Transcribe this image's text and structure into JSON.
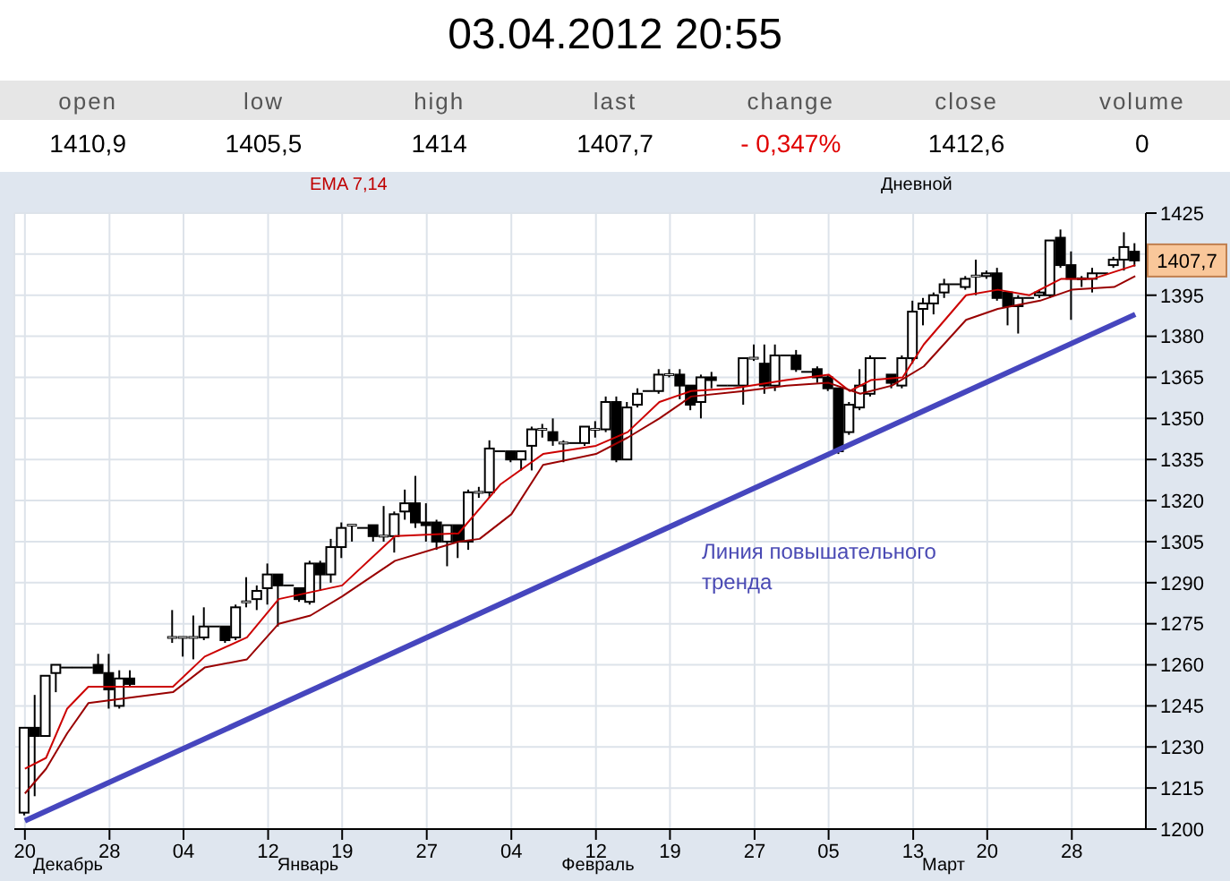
{
  "chart_data": [
    {
      "type": "other",
      "title": "03.04.2012 20:55",
      "categories": [
        "open",
        "low",
        "high",
        "last",
        "change",
        "close",
        "volume"
      ],
      "values": [
        1410.9,
        1405.5,
        1414,
        1407.7,
        -0.347,
        1412.6,
        0
      ],
      "value_labels": [
        "1410,9",
        "1405,5",
        "1414",
        "1407,7",
        "- 0,347%",
        "1412,6",
        "0"
      ]
    },
    {
      "type": "candlestick",
      "subtitle": "Дневной",
      "color": "#000000",
      "grid": true,
      "x": [
        "2011-12-20",
        "2011-12-21",
        "2011-12-22",
        "2011-12-23",
        "2011-12-24",
        "2011-12-25",
        "2011-12-26",
        "2011-12-27",
        "2011-12-28",
        "2011-12-29",
        "2011-12-30",
        "2012-01-03",
        "2012-01-04",
        "2012-01-05",
        "2012-01-06",
        "2012-01-07",
        "2012-01-08",
        "2012-01-09",
        "2012-01-10",
        "2012-01-11",
        "2012-01-12",
        "2012-01-13",
        "2012-01-14",
        "2012-01-15",
        "2012-01-16",
        "2012-01-17",
        "2012-01-18",
        "2012-01-19",
        "2012-01-20",
        "2012-01-21",
        "2012-01-22",
        "2012-01-23",
        "2012-01-24",
        "2012-01-25",
        "2012-01-26",
        "2012-01-27",
        "2012-01-28",
        "2012-01-29",
        "2012-01-30",
        "2012-01-31",
        "2012-02-01",
        "2012-02-02",
        "2012-02-03",
        "2012-02-04",
        "2012-02-05",
        "2012-02-06",
        "2012-02-07",
        "2012-02-08",
        "2012-02-09",
        "2012-02-10",
        "2012-02-11",
        "2012-02-12",
        "2012-02-13",
        "2012-02-14",
        "2012-02-15",
        "2012-02-16",
        "2012-02-17",
        "2012-02-18",
        "2012-02-19",
        "2012-02-20",
        "2012-02-21",
        "2012-02-22",
        "2012-02-23",
        "2012-02-24",
        "2012-02-25",
        "2012-02-26",
        "2012-02-27",
        "2012-02-28",
        "2012-02-29",
        "2012-03-01",
        "2012-03-02",
        "2012-03-03",
        "2012-03-04",
        "2012-03-05",
        "2012-03-06",
        "2012-03-07",
        "2012-03-08",
        "2012-03-09",
        "2012-03-10",
        "2012-03-11",
        "2012-03-12",
        "2012-03-13",
        "2012-03-14",
        "2012-03-15",
        "2012-03-16",
        "2012-03-17",
        "2012-03-18",
        "2012-03-19",
        "2012-03-20",
        "2012-03-21",
        "2012-03-22",
        "2012-03-23",
        "2012-03-24",
        "2012-03-25",
        "2012-03-26",
        "2012-03-27",
        "2012-03-28",
        "2012-03-29",
        "2012-03-30",
        "2012-03-31",
        "2012-04-01",
        "2012-04-02",
        "2012-04-03"
      ],
      "ohlc": [
        [
          1206,
          1237,
          1205,
          1237
        ],
        [
          1237,
          1249,
          1212,
          1234
        ],
        [
          1234,
          1256,
          1234,
          1256
        ],
        [
          1257,
          1260,
          1250,
          1260
        ],
        [
          1259,
          1259,
          1259,
          1259
        ],
        [
          1259,
          1259,
          1259,
          1259
        ],
        [
          1259,
          1259,
          1259,
          1259
        ],
        [
          1260,
          1264,
          1257,
          1257
        ],
        [
          1257,
          1264,
          1244,
          1251
        ],
        [
          1245,
          1258,
          1244,
          1255
        ],
        [
          1255,
          1258,
          1252,
          1253
        ],
        [
          1270,
          1280,
          1268,
          1270
        ],
        [
          1270,
          1270,
          1263,
          1270
        ],
        [
          1270,
          1278,
          1262,
          1270
        ],
        [
          1270,
          1281,
          1269,
          1274
        ],
        [
          1274,
          1274,
          1274,
          1274
        ],
        [
          1274,
          1274,
          1268,
          1269
        ],
        [
          1270,
          1282,
          1269,
          1281
        ],
        [
          1283,
          1292,
          1281,
          1283
        ],
        [
          1284,
          1289,
          1280,
          1287
        ],
        [
          1288,
          1297,
          1282,
          1293
        ],
        [
          1293,
          1293,
          1274,
          1289
        ],
        [
          1289,
          1289,
          1289,
          1289
        ],
        [
          1288,
          1288,
          1283,
          1284
        ],
        [
          1283,
          1298,
          1282,
          1297
        ],
        [
          1297,
          1298,
          1287,
          1293
        ],
        [
          1293,
          1306,
          1290,
          1303
        ],
        [
          1303,
          1312,
          1299,
          1310
        ],
        [
          1311,
          1311,
          1305,
          1311
        ],
        [
          1310,
          1310,
          1310,
          1310
        ],
        [
          1311,
          1311,
          1305,
          1307
        ],
        [
          1307,
          1318,
          1305,
          1307
        ],
        [
          1307,
          1316,
          1301,
          1315
        ],
        [
          1316,
          1324,
          1313,
          1319
        ],
        [
          1319,
          1329,
          1310,
          1312
        ],
        [
          1312,
          1319,
          1305,
          1311
        ],
        [
          1312,
          1313,
          1302,
          1305
        ],
        [
          1305,
          1311,
          1296,
          1311
        ],
        [
          1311,
          1311,
          1299,
          1305
        ],
        [
          1305,
          1324,
          1302,
          1323
        ],
        [
          1323,
          1325,
          1321,
          1323
        ],
        [
          1323,
          1342,
          1321,
          1339
        ],
        [
          1338,
          1338,
          1338,
          1338
        ],
        [
          1338,
          1338,
          1334,
          1335
        ],
        [
          1335,
          1338,
          1331,
          1338
        ],
        [
          1340,
          1347,
          1331,
          1346
        ],
        [
          1346,
          1348,
          1343,
          1346
        ],
        [
          1345,
          1350,
          1340,
          1342
        ],
        [
          1341,
          1342,
          1334,
          1341
        ],
        [
          1341,
          1341,
          1341,
          1341
        ],
        [
          1341,
          1347,
          1340,
          1347
        ],
        [
          1346,
          1349,
          1343,
          1346
        ],
        [
          1346,
          1358,
          1345,
          1356
        ],
        [
          1356,
          1358,
          1334,
          1335
        ],
        [
          1335,
          1356,
          1335,
          1354
        ],
        [
          1355,
          1361,
          1354,
          1359
        ],
        [
          1360,
          1360,
          1360,
          1360
        ],
        [
          1360,
          1368,
          1359,
          1366
        ],
        [
          1366,
          1368,
          1365,
          1366
        ],
        [
          1366,
          1368,
          1357,
          1362
        ],
        [
          1362,
          1362,
          1353,
          1355
        ],
        [
          1356,
          1366,
          1350,
          1365
        ],
        [
          1365,
          1367,
          1361,
          1364
        ],
        [
          1362,
          1362,
          1362,
          1362
        ],
        [
          1362,
          1362,
          1362,
          1362
        ],
        [
          1362,
          1372,
          1355,
          1372
        ],
        [
          1372,
          1377,
          1371,
          1372
        ],
        [
          1370,
          1377,
          1359,
          1362
        ],
        [
          1362,
          1377,
          1360,
          1373
        ],
        [
          1373,
          1373,
          1373,
          1373
        ],
        [
          1373,
          1375,
          1367,
          1368
        ],
        [
          1367,
          1367,
          1367,
          1367
        ],
        [
          1368,
          1369,
          1363,
          1365
        ],
        [
          1365,
          1366,
          1360,
          1361
        ],
        [
          1361,
          1361,
          1337,
          1338
        ],
        [
          1345,
          1356,
          1344,
          1355
        ],
        [
          1354,
          1368,
          1353,
          1362
        ],
        [
          1359,
          1373,
          1358,
          1372
        ],
        [
          1372,
          1372,
          1372,
          1372
        ],
        [
          1366,
          1366,
          1361,
          1363
        ],
        [
          1362,
          1373,
          1361,
          1372
        ],
        [
          1372,
          1393,
          1370,
          1389
        ],
        [
          1390,
          1394,
          1384,
          1392
        ],
        [
          1392,
          1396,
          1388,
          1395
        ],
        [
          1396,
          1401,
          1394,
          1399
        ],
        [
          1399,
          1399,
          1399,
          1399
        ],
        [
          1398,
          1402,
          1397,
          1401
        ],
        [
          1402,
          1408,
          1395,
          1402
        ],
        [
          1402,
          1404,
          1401,
          1403
        ],
        [
          1403,
          1405,
          1393,
          1394
        ],
        [
          1396,
          1396,
          1384,
          1391
        ],
        [
          1391,
          1395,
          1381,
          1394
        ],
        [
          1394,
          1394,
          1394,
          1394
        ],
        [
          1395,
          1397,
          1394,
          1396
        ],
        [
          1395,
          1415,
          1394,
          1415
        ],
        [
          1416,
          1419,
          1405,
          1406
        ],
        [
          1406,
          1411,
          1386,
          1401
        ],
        [
          1401,
          1402,
          1398,
          1401
        ],
        [
          1401,
          1405,
          1396,
          1403
        ],
        [
          1403,
          1403,
          1403,
          1403
        ],
        [
          1406,
          1409,
          1405,
          1408
        ],
        [
          1408,
          1418,
          1404,
          1412.6
        ],
        [
          1410.9,
          1414,
          1405.5,
          1407.7
        ]
      ],
      "series": [
        {
          "type": "line",
          "color": "#cc0000",
          "x": [
            "2011-12-20",
            "2011-12-22",
            "2011-12-24",
            "2011-12-26",
            "2012-01-03",
            "2012-01-06",
            "2012-01-10",
            "2012-01-13",
            "2012-01-19",
            "2012-01-24",
            "2012-01-30",
            "2012-02-03",
            "2012-02-07",
            "2012-02-12",
            "2012-02-15",
            "2012-02-18",
            "2012-02-21",
            "2012-02-25",
            "2012-03-01",
            "2012-03-05",
            "2012-03-07",
            "2012-03-09",
            "2012-03-12",
            "2012-03-14",
            "2012-03-18",
            "2012-03-21",
            "2012-03-24",
            "2012-03-27",
            "2012-03-30",
            "2012-04-03"
          ],
          "values": [
            1222,
            1226,
            1244,
            1252,
            1252,
            1263,
            1270,
            1284,
            1289,
            1307,
            1308,
            1326,
            1337,
            1340,
            1345,
            1356,
            1360,
            1361,
            1364,
            1366,
            1360,
            1364,
            1365,
            1377,
            1395,
            1397,
            1395,
            1401,
            1401,
            1406
          ]
        },
        {
          "type": "line",
          "color": "#990000",
          "x": [
            "2011-12-20",
            "2011-12-22",
            "2011-12-24",
            "2011-12-26",
            "2012-01-03",
            "2012-01-06",
            "2012-01-10",
            "2012-01-13",
            "2012-01-16",
            "2012-01-19",
            "2012-01-24",
            "2012-01-30",
            "2012-02-01",
            "2012-02-04",
            "2012-02-07",
            "2012-02-12",
            "2012-02-15",
            "2012-02-18",
            "2012-02-21",
            "2012-02-26",
            "2012-03-01",
            "2012-03-05",
            "2012-03-08",
            "2012-03-11",
            "2012-03-14",
            "2012-03-18",
            "2012-03-21",
            "2012-03-25",
            "2012-03-28",
            "2012-04-01",
            "2012-04-03"
          ],
          "values": [
            1213,
            1222,
            1235,
            1246,
            1250,
            1259,
            1262,
            1275,
            1278,
            1285,
            1298,
            1305,
            1306,
            1315,
            1333,
            1337,
            1343,
            1350,
            1358,
            1360,
            1362,
            1363,
            1359,
            1362,
            1369,
            1386,
            1390,
            1393,
            1397,
            1398,
            1402
          ]
        },
        {
          "type": "line",
          "color": "#4646be",
          "x": [
            "2011-12-20",
            "2012-04-03"
          ],
          "values": [
            1203,
            1388
          ]
        }
      ],
      "xlim": [
        "2011-12-19",
        "2012-04-04"
      ],
      "xticks": [
        {
          "value": "2011-12-20",
          "label": "20"
        },
        {
          "value": "2011-12-28",
          "label": "28"
        },
        {
          "value": "2012-01-04",
          "label": "04"
        },
        {
          "value": "2012-01-12",
          "label": "12"
        },
        {
          "value": "2012-01-19",
          "label": "19"
        },
        {
          "value": "2012-01-27",
          "label": "27"
        },
        {
          "value": "2012-02-04",
          "label": "04"
        },
        {
          "value": "2012-02-12",
          "label": "12"
        },
        {
          "value": "2012-02-19",
          "label": "19"
        },
        {
          "value": "2012-02-27",
          "label": "27"
        },
        {
          "value": "2012-03-05",
          "label": "05"
        },
        {
          "value": "2012-03-13",
          "label": "13"
        },
        {
          "value": "2012-03-20",
          "label": "20"
        },
        {
          "value": "2012-03-28",
          "label": "28"
        }
      ],
      "ylim": [
        1200,
        1425
      ],
      "yticks": [
        1200,
        1215,
        1230,
        1245,
        1260,
        1275,
        1290,
        1305,
        1320,
        1335,
        1350,
        1365,
        1380,
        1395,
        {
          "value": 1410,
          "label": null
        },
        1425
      ],
      "annotations": [
        "EMA 7,14",
        "Линия повышательного тренда",
        "Декабрь",
        "Январь",
        "Февраль",
        "Март",
        {
          "text": "1407,7",
          "x": "2012-04-03",
          "y": 1407.7
        }
      ]
    }
  ]
}
